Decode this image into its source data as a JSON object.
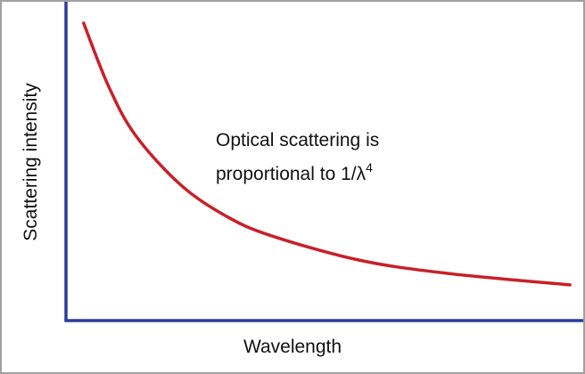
{
  "chart_data": {
    "type": "line",
    "title": "",
    "xlabel": "Wavelength",
    "ylabel": "Scattering intensity",
    "annotation": {
      "line1": "Optical scattering is",
      "line2_prefix": "proportional to 1/λ",
      "line2_superscript": "4"
    },
    "ticks": "none",
    "grid": false,
    "xlim": [
      0,
      1
    ],
    "ylim": [
      0,
      1
    ],
    "series": [
      {
        "x": [
          0.034,
          0.082,
          0.134,
          0.22,
          0.306,
          0.392,
          0.564,
          0.735,
          0.971
        ],
        "y": [
          0.933,
          0.735,
          0.581,
          0.427,
          0.33,
          0.268,
          0.19,
          0.148,
          0.112
        ]
      }
    ],
    "colors": {
      "curve": "#c8202a",
      "axes": "#2b3d9a"
    }
  }
}
